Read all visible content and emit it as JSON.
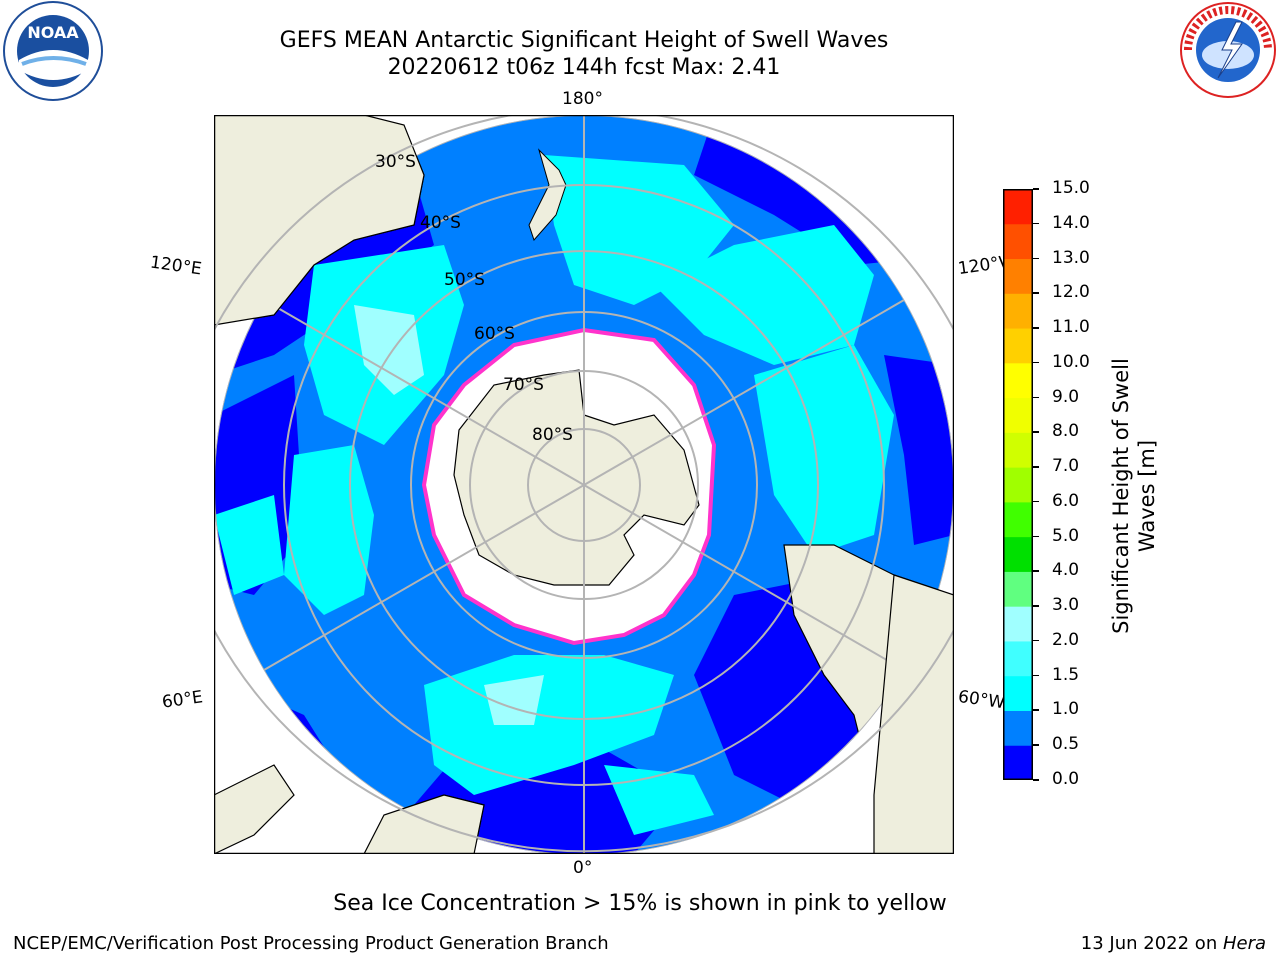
{
  "header": {
    "title_line1": "GEFS MEAN Antarctic Significant Height of Swell Waves",
    "title_line2": "20220612 t06z 144h fcst   Max: 2.41"
  },
  "logos": {
    "noaa_text": "NOAA",
    "noaa_ring": "NATIONAL OCEANIC AND ATMOSPHERIC ADMINISTRATION · U.S. DEPARTMENT OF COMMERCE",
    "nws_ring": "NATIONAL WEATHER SERVICE"
  },
  "map": {
    "projection": "south-polar-stereographic",
    "longitude_labels": {
      "top": "180°",
      "bottom": "0°",
      "left_upper": "120°E",
      "left_lower": "60°E",
      "right_upper": "120°W",
      "right_lower": "60°W"
    },
    "latitude_labels": [
      "30°S",
      "40°S",
      "50°S",
      "60°S",
      "70°S",
      "80°S"
    ],
    "legend_note": "Sea Ice Concentration > 15% is shown in pink to yellow",
    "colors": {
      "ocean_low": "#0000ff",
      "ocean_mid": "#0080ff",
      "ocean_high": "#00ffff",
      "land": "#eeeedd",
      "ice": "#ffffff",
      "ice_edge": "#ff33cc"
    }
  },
  "colorbar": {
    "label_line1": "Significant Height of Swell",
    "label_line2": "Waves [m]",
    "ticks": [
      "0.0",
      "0.5",
      "1.0",
      "1.5",
      "2.0",
      "3.0",
      "4.0",
      "5.0",
      "6.0",
      "7.0",
      "8.0",
      "9.0",
      "10.0",
      "11.0",
      "12.0",
      "13.0",
      "14.0",
      "15.0"
    ],
    "colors": [
      "#0000ff",
      "#0080ff",
      "#00ffff",
      "#40ffff",
      "#a0ffff",
      "#60ff80",
      "#00e000",
      "#40ff00",
      "#a0ff00",
      "#d0ff00",
      "#f0ff00",
      "#ffff00",
      "#ffd000",
      "#ffb000",
      "#ff8000",
      "#ff5000",
      "#ff2000"
    ]
  },
  "footer": {
    "left": "NCEP/EMC/Verification Post Processing Product Generation Branch",
    "right_date": "13 Jun 2022 on ",
    "right_host": "Hera"
  }
}
